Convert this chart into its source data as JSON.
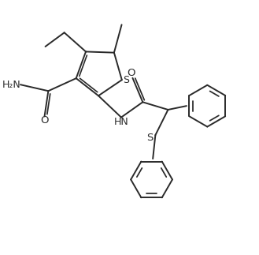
{
  "bg_color": "#ffffff",
  "line_color": "#2a2a2a",
  "line_width": 1.4,
  "figsize": [
    3.29,
    3.23
  ],
  "dpi": 100,
  "xlim": [
    0,
    10
  ],
  "ylim": [
    0,
    10
  ]
}
